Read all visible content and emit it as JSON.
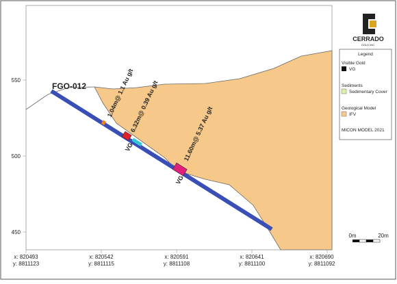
{
  "axes": {
    "y_ticks": [
      "550",
      "500",
      "450"
    ],
    "x_ticks": [
      {
        "x": "x: 820493",
        "y": "y: 8811123"
      },
      {
        "x": "x: 820542",
        "y": "y: 8811115"
      },
      {
        "x": "x: 820591",
        "y": "y: 8811108"
      },
      {
        "x": "x: 820641",
        "y": "y: 8811100"
      },
      {
        "x": "x: 820690",
        "y": "y: 8811092"
      }
    ]
  },
  "hole": {
    "name": "FGO-012"
  },
  "intervals": [
    "1.04m@ 1.1 Au g/t",
    "6.32m@ 0.39 Au g/t",
    "11.60m@ 5.37 Au g/t"
  ],
  "vg_labels": [
    "VG",
    "VG"
  ],
  "legend": {
    "title": "Legend",
    "groups": [
      {
        "title": "Visible Gold",
        "item": "VG"
      },
      {
        "title": "Sediments",
        "item": "Sedimentary Cover"
      },
      {
        "title": "Geological Model",
        "item": "IFV"
      }
    ],
    "model": "MICON MODEL 2021"
  },
  "logo": {
    "name": "CERRADO",
    "sub": "GOLD INC."
  },
  "scale": {
    "start": "0m",
    "end": "20m"
  }
}
